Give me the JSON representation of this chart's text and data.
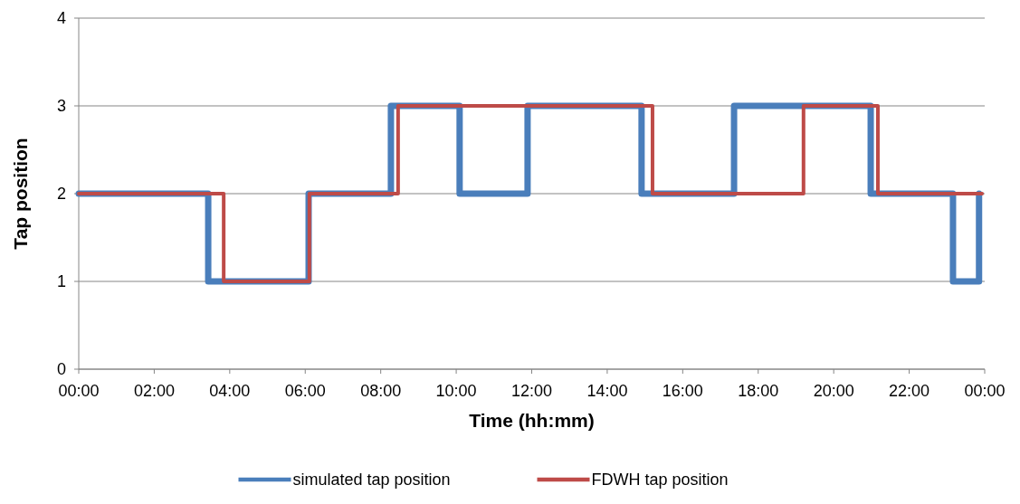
{
  "chart_data": {
    "type": "step",
    "xlabel": "Time (hh:mm)",
    "ylabel": "Tap position",
    "xlim": [
      0,
      24
    ],
    "xticks": [
      {
        "value": 0,
        "label": "00:00"
      },
      {
        "value": 2,
        "label": "02:00"
      },
      {
        "value": 4,
        "label": "04:00"
      },
      {
        "value": 6,
        "label": "06:00"
      },
      {
        "value": 8,
        "label": "08:00"
      },
      {
        "value": 10,
        "label": "10:00"
      },
      {
        "value": 12,
        "label": "12:00"
      },
      {
        "value": 14,
        "label": "14:00"
      },
      {
        "value": 16,
        "label": "16:00"
      },
      {
        "value": 18,
        "label": "18:00"
      },
      {
        "value": 20,
        "label": "20:00"
      },
      {
        "value": 22,
        "label": "22:00"
      },
      {
        "value": 24,
        "label": "00:00"
      }
    ],
    "ylim": [
      0,
      4
    ],
    "yticks": [
      0,
      1,
      2,
      3,
      4
    ],
    "grid": "y",
    "legend": "bottom",
    "series": [
      {
        "name": "simulated tap position",
        "color": "#4a7ebb",
        "x": [
          0,
          3.43,
          6.09,
          8.27,
          10.09,
          11.89,
          14.91,
          17.36,
          20.98,
          23.16,
          23.85
        ],
        "values": [
          2,
          1,
          2,
          3,
          2,
          3,
          2,
          3,
          2,
          1,
          2
        ]
      },
      {
        "name": "FDWH tap position",
        "color": "#be4b48",
        "x": [
          0,
          3.84,
          6.11,
          8.46,
          15.2,
          19.2,
          21.17,
          23.93
        ],
        "values": [
          2,
          1,
          2,
          3,
          2,
          3,
          2,
          2
        ]
      }
    ]
  }
}
